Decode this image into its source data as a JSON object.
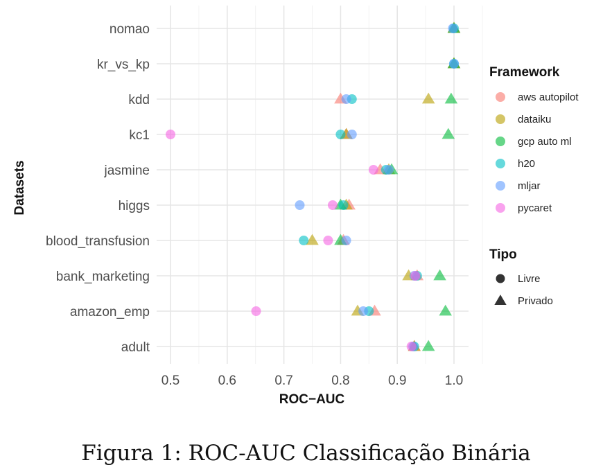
{
  "chart_data": {
    "type": "scatter",
    "title": "",
    "xlabel": "ROC−AUC",
    "ylabel": "Datasets",
    "xlim": [
      0.49,
      1.025
    ],
    "xticks": [
      "0.5",
      "0.6",
      "0.7",
      "0.8",
      "0.9",
      "1.0"
    ],
    "xtick_values": [
      0.5,
      0.6,
      0.7,
      0.8,
      0.9,
      1.0
    ],
    "categories": [
      "adult",
      "amazon_emp",
      "bank_marketing",
      "blood_transfusion",
      "higgs",
      "jasmine",
      "kc1",
      "kdd",
      "kr_vs_kp",
      "nomao"
    ],
    "grid": true,
    "legend_position": "right",
    "legend_framework_title": "Framework",
    "legend_tipo_title": "Tipo",
    "series": [
      {
        "name": "aws autopilot",
        "color": "#F8766D",
        "tipo": "Privado",
        "values": [
          0.93,
          0.86,
          0.935,
          0.805,
          0.815,
          0.87,
          0.81,
          0.8,
          1.0,
          1.0
        ]
      },
      {
        "name": "dataiku",
        "color": "#B79F00",
        "tipo": "Privado",
        "values": [
          0.93,
          0.83,
          0.92,
          0.75,
          0.81,
          0.885,
          0.81,
          0.955,
          1.0,
          1.0
        ]
      },
      {
        "name": "gcp auto ml",
        "color": "#00BA38",
        "tipo": "Privado",
        "values": [
          0.955,
          0.985,
          0.975,
          0.8,
          0.8,
          0.89,
          0.99,
          0.995,
          1.0,
          1.0
        ]
      },
      {
        "name": "h20",
        "color": "#00BFC4",
        "tipo": "Livre",
        "values": [
          0.93,
          0.85,
          0.935,
          0.735,
          0.805,
          0.88,
          0.8,
          0.82,
          1.0,
          1.0
        ]
      },
      {
        "name": "mljar",
        "color": "#619CFF",
        "tipo": "Livre",
        "values": [
          0.928,
          0.84,
          0.93,
          0.81,
          0.728,
          0.885,
          0.82,
          0.81,
          1.0,
          0.998
        ]
      },
      {
        "name": "pycaret",
        "color": "#F564E3",
        "tipo": "Livre",
        "values": [
          0.925,
          0.651,
          0.932,
          0.778,
          0.786,
          0.858,
          0.5,
          null,
          null,
          null
        ]
      }
    ],
    "tipo_legend": [
      {
        "name": "Livre",
        "shape": "circle"
      },
      {
        "name": "Privado",
        "shape": "triangle"
      }
    ]
  },
  "caption": "Figura 1: ROC-AUC Classificação Binária"
}
